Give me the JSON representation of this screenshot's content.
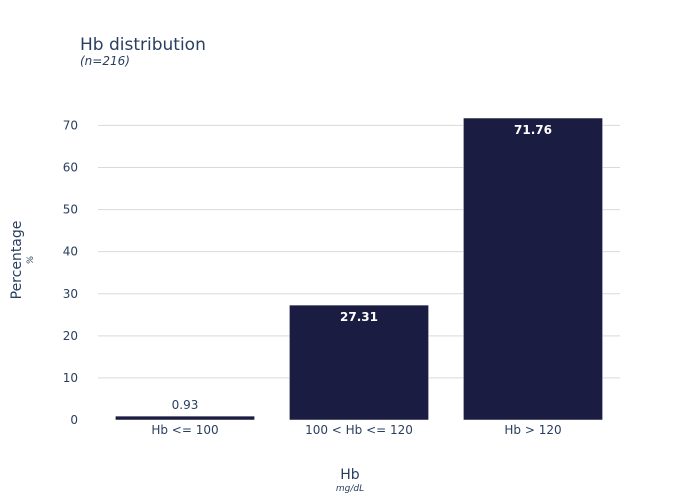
{
  "chart_data": {
    "type": "bar",
    "title": "Hb distribution",
    "subtitle": "(n=216)",
    "categories": [
      "Hb <= 100",
      "100 < Hb <= 120",
      "Hb > 120"
    ],
    "values": [
      0.93,
      27.31,
      71.76
    ],
    "data_labels": [
      "0.93",
      "27.31",
      "71.76"
    ],
    "xlabel": "Hb",
    "xlabel_unit": "mg/dL",
    "ylabel": "Percentage",
    "ylabel_unit": "%",
    "ylim": [
      0,
      72
    ],
    "yticks": [
      0,
      10,
      20,
      30,
      40,
      50,
      60,
      70
    ],
    "ytick_labels": [
      "0",
      "10",
      "20",
      "30",
      "40",
      "50",
      "60",
      "70"
    ],
    "grid": true,
    "bar_color": "#1b1c42",
    "grid_color": "#d9d9d9",
    "text_color": "#2a3f5f"
  }
}
